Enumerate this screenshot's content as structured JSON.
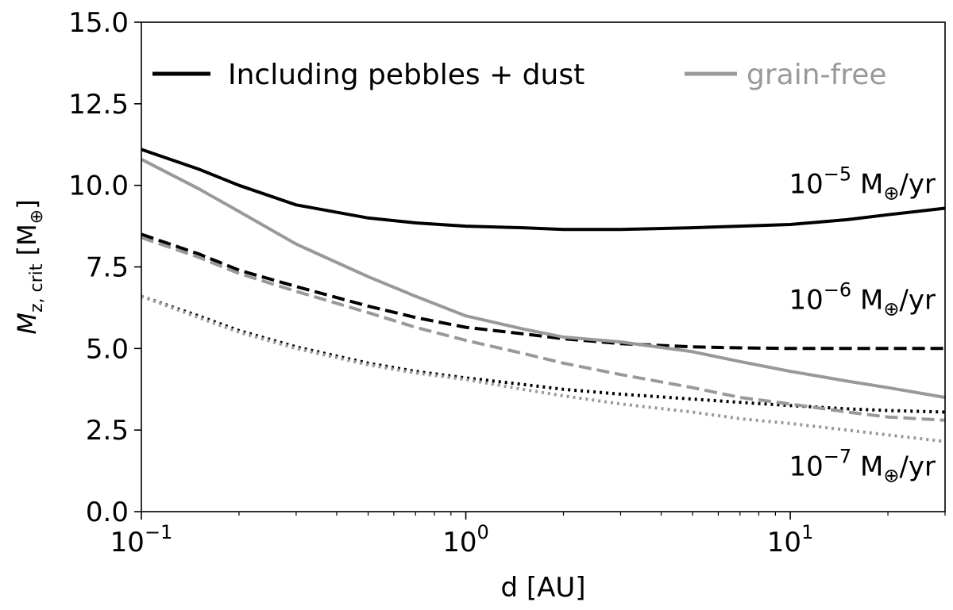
{
  "chart_data": {
    "type": "line",
    "title": "",
    "xlabel": "d [AU]",
    "ylabel": {
      "main": "M",
      "sub": "z, crit",
      "unit": "[M",
      "unit_close": "]",
      "earth": "⊕"
    },
    "xscale": "log",
    "xlim": [
      0.1,
      30
    ],
    "ylim": [
      0,
      15
    ],
    "grid": false,
    "legend_position": "top",
    "x_ticks": [
      {
        "value": 0.1,
        "base": "10",
        "exp": "−1"
      },
      {
        "value": 1,
        "base": "10",
        "exp": "0"
      },
      {
        "value": 10,
        "base": "10",
        "exp": "1"
      }
    ],
    "y_ticks": [
      "0.0",
      "2.5",
      "5.0",
      "7.5",
      "10.0",
      "12.5",
      "15.0"
    ],
    "legend": [
      {
        "label": "Including pebbles + dust",
        "color": "#000000"
      },
      {
        "label": "grain-free",
        "color": "#999999"
      }
    ],
    "annotations": [
      {
        "prefix": "10",
        "exp": "−5",
        "suffix": "M",
        "earth": "⊕",
        "unit": "/yr",
        "x": 30,
        "y": 10.05
      },
      {
        "prefix": "10",
        "exp": "−6",
        "suffix": "M",
        "earth": "⊕",
        "unit": "/yr",
        "x": 30,
        "y": 6.5
      },
      {
        "prefix": "10",
        "exp": "−7",
        "suffix": "M",
        "earth": "⊕",
        "unit": "/yr",
        "x": 30,
        "y": 1.4
      }
    ],
    "series": [
      {
        "color": "#000000",
        "dash": "solid",
        "x": [
          0.1,
          0.15,
          0.2,
          0.3,
          0.5,
          0.7,
          1,
          1.5,
          2,
          3,
          5,
          7,
          10,
          15,
          20,
          30
        ],
        "y": [
          11.1,
          10.5,
          10.0,
          9.4,
          9.0,
          8.85,
          8.75,
          8.7,
          8.65,
          8.65,
          8.7,
          8.75,
          8.8,
          8.95,
          9.1,
          9.3
        ]
      },
      {
        "color": "#000000",
        "dash": "dashed",
        "x": [
          0.1,
          0.15,
          0.2,
          0.3,
          0.5,
          0.7,
          1,
          1.5,
          2,
          3,
          5,
          7,
          10,
          15,
          20,
          30
        ],
        "y": [
          8.5,
          7.9,
          7.4,
          6.9,
          6.3,
          5.95,
          5.65,
          5.45,
          5.3,
          5.15,
          5.05,
          5.02,
          5.0,
          5.0,
          5.0,
          5.0
        ]
      },
      {
        "color": "#000000",
        "dash": "dotted",
        "x": [
          0.1,
          0.15,
          0.2,
          0.3,
          0.5,
          0.7,
          1,
          1.5,
          2,
          3,
          5,
          7,
          10,
          15,
          20,
          30
        ],
        "y": [
          6.6,
          6.0,
          5.55,
          5.05,
          4.55,
          4.3,
          4.1,
          3.9,
          3.75,
          3.6,
          3.45,
          3.35,
          3.25,
          3.15,
          3.1,
          3.05
        ]
      },
      {
        "color": "#999999",
        "dash": "solid",
        "x": [
          0.1,
          0.15,
          0.2,
          0.3,
          0.5,
          0.7,
          1,
          1.5,
          2,
          3,
          5,
          7,
          10,
          15,
          20,
          30
        ],
        "y": [
          10.8,
          9.9,
          9.2,
          8.2,
          7.2,
          6.6,
          6.0,
          5.6,
          5.35,
          5.2,
          4.9,
          4.6,
          4.3,
          4.0,
          3.8,
          3.5
        ]
      },
      {
        "color": "#999999",
        "dash": "dashed",
        "x": [
          0.1,
          0.15,
          0.2,
          0.3,
          0.5,
          0.7,
          1,
          1.5,
          2,
          3,
          5,
          7,
          10,
          15,
          20,
          30
        ],
        "y": [
          8.4,
          7.8,
          7.3,
          6.75,
          6.1,
          5.65,
          5.25,
          4.85,
          4.55,
          4.2,
          3.8,
          3.5,
          3.3,
          3.05,
          2.9,
          2.8
        ]
      },
      {
        "color": "#999999",
        "dash": "dotted",
        "x": [
          0.1,
          0.15,
          0.2,
          0.3,
          0.5,
          0.7,
          1,
          1.5,
          2,
          3,
          5,
          7,
          10,
          15,
          20,
          30
        ],
        "y": [
          6.6,
          5.95,
          5.5,
          5.0,
          4.5,
          4.25,
          4.05,
          3.75,
          3.55,
          3.3,
          3.05,
          2.85,
          2.7,
          2.5,
          2.35,
          2.15
        ]
      }
    ]
  }
}
